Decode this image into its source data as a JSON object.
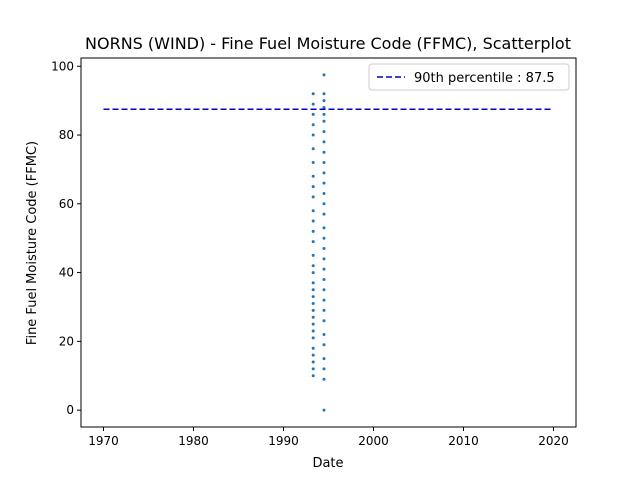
{
  "chart_data": {
    "type": "scatter",
    "title": "NORNS (WIND) - Fine Fuel Moisture Code (FFMC), Scatterplot",
    "x_label": "Date",
    "y_label": "Fine Fuel Moisture Code (FFMC)",
    "xlim": [
      1967.5,
      2022.5
    ],
    "xticks": [
      1970,
      1980,
      1990,
      2000,
      2010,
      2020
    ],
    "ylim": [
      -4.9,
      102.4
    ],
    "yticks": [
      0,
      20,
      40,
      60,
      80,
      100
    ],
    "grid": false,
    "legend": "upper right",
    "series": [
      {
        "color": "#1f77b4",
        "x": [
          1993.3,
          1993.3,
          1993.3,
          1993.3,
          1993.3,
          1993.3,
          1993.3,
          1993.3,
          1993.3,
          1993.3,
          1993.3,
          1993.3,
          1993.3,
          1993.3,
          1993.3,
          1993.3,
          1993.3,
          1993.3,
          1993.3,
          1993.3,
          1993.3,
          1993.3,
          1993.3,
          1993.3,
          1993.3,
          1993.3,
          1993.3,
          1993.3,
          1993.3,
          1993.3,
          1993.3,
          1994.5,
          1994.5,
          1994.5,
          1994.5,
          1994.5,
          1994.5,
          1994.5,
          1994.5,
          1994.5,
          1994.5,
          1994.5,
          1994.5,
          1994.5,
          1994.5,
          1994.5,
          1994.5,
          1994.5,
          1994.5,
          1994.5,
          1994.5,
          1994.5,
          1994.5,
          1994.5,
          1994.5,
          1994.5,
          1994.5,
          1994.5,
          1994.5,
          1994.5,
          1994.5,
          1994.5
        ],
        "values": [
          92,
          89,
          86,
          83,
          80,
          76,
          72,
          68,
          65,
          62,
          58,
          55,
          52,
          49,
          45,
          42,
          40,
          37,
          35,
          33,
          31,
          29,
          27,
          25,
          23,
          21,
          18,
          16,
          14,
          12,
          10,
          97.5,
          92,
          90,
          88,
          86,
          84,
          81,
          78,
          75,
          72,
          69,
          66,
          63,
          60,
          57,
          53,
          50,
          47,
          44,
          41,
          38,
          35,
          32,
          29,
          26,
          22,
          19,
          15,
          12,
          9,
          0
        ]
      }
    ],
    "reference_line": {
      "name": "90th percentile : 87.5",
      "color": "#0000cc",
      "x": [
        1970,
        2020
      ],
      "values": [
        87.5,
        87.5
      ]
    }
  }
}
